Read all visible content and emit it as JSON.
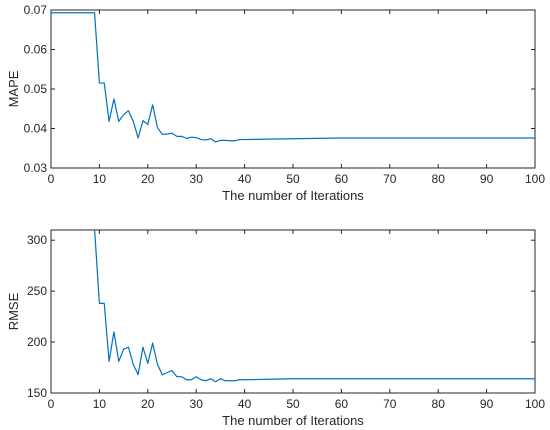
{
  "chart_data": [
    {
      "type": "line",
      "xlabel": "The number of Iterations",
      "ylabel": "MAPE",
      "xlim": [
        0,
        100
      ],
      "ylim": [
        0.03,
        0.07
      ],
      "xticks": [
        "0",
        "10",
        "20",
        "30",
        "40",
        "50",
        "60",
        "70",
        "80",
        "90",
        "100"
      ],
      "yticks": [
        "0.03",
        "0.04",
        "0.05",
        "0.06",
        "0.07"
      ],
      "grid": false,
      "series": [
        {
          "color": "#0072BD",
          "x": [
            0,
            1,
            2,
            3,
            4,
            5,
            6,
            7,
            8,
            9,
            10,
            11,
            12,
            13,
            14,
            15,
            16,
            17,
            18,
            19,
            20,
            21,
            22,
            23,
            24,
            25,
            26,
            27,
            28,
            29,
            30,
            31,
            32,
            33,
            34,
            35,
            36,
            37,
            38,
            39,
            40,
            45,
            50,
            55,
            60,
            70,
            80,
            90,
            100
          ],
          "y": [
            0.0693,
            0.0693,
            0.0693,
            0.0693,
            0.0693,
            0.0693,
            0.0693,
            0.0693,
            0.0693,
            0.0693,
            0.0515,
            0.0515,
            0.0418,
            0.0475,
            0.0418,
            0.0435,
            0.0445,
            0.0418,
            0.0376,
            0.042,
            0.041,
            0.046,
            0.0402,
            0.0385,
            0.0386,
            0.0388,
            0.038,
            0.038,
            0.0375,
            0.0378,
            0.0377,
            0.0372,
            0.0371,
            0.0374,
            0.0366,
            0.037,
            0.037,
            0.0369,
            0.0369,
            0.0372,
            0.0372,
            0.0373,
            0.0374,
            0.0375,
            0.0376,
            0.0376,
            0.0376,
            0.0376,
            0.0376
          ]
        }
      ]
    },
    {
      "type": "line",
      "xlabel": "The number of Iterations",
      "ylabel": "RMSE",
      "xlim": [
        0,
        100
      ],
      "ylim": [
        150,
        310
      ],
      "xticks": [
        "0",
        "10",
        "20",
        "30",
        "40",
        "50",
        "60",
        "70",
        "80",
        "90",
        "100"
      ],
      "yticks": [
        "150",
        "200",
        "250",
        "300"
      ],
      "grid": false,
      "series": [
        {
          "color": "#0072BD",
          "x": [
            0,
            1,
            2,
            3,
            4,
            5,
            6,
            7,
            8,
            9,
            10,
            11,
            12,
            13,
            14,
            15,
            16,
            17,
            18,
            19,
            20,
            21,
            22,
            23,
            24,
            25,
            26,
            27,
            28,
            29,
            30,
            31,
            32,
            33,
            34,
            35,
            36,
            37,
            38,
            39,
            40,
            45,
            50,
            55,
            60,
            70,
            80,
            90,
            100
          ],
          "y": [
            311,
            311,
            311,
            311,
            311,
            311,
            311,
            311,
            311,
            311,
            238,
            238,
            181,
            210,
            181,
            193,
            195,
            178,
            168,
            195,
            179,
            199,
            178,
            168,
            170,
            172,
            166,
            166,
            163,
            163,
            166,
            163,
            162,
            164,
            161,
            164,
            162,
            162,
            162,
            163,
            163,
            163.5,
            164,
            164,
            164,
            164,
            164,
            164,
            164
          ]
        }
      ]
    }
  ]
}
